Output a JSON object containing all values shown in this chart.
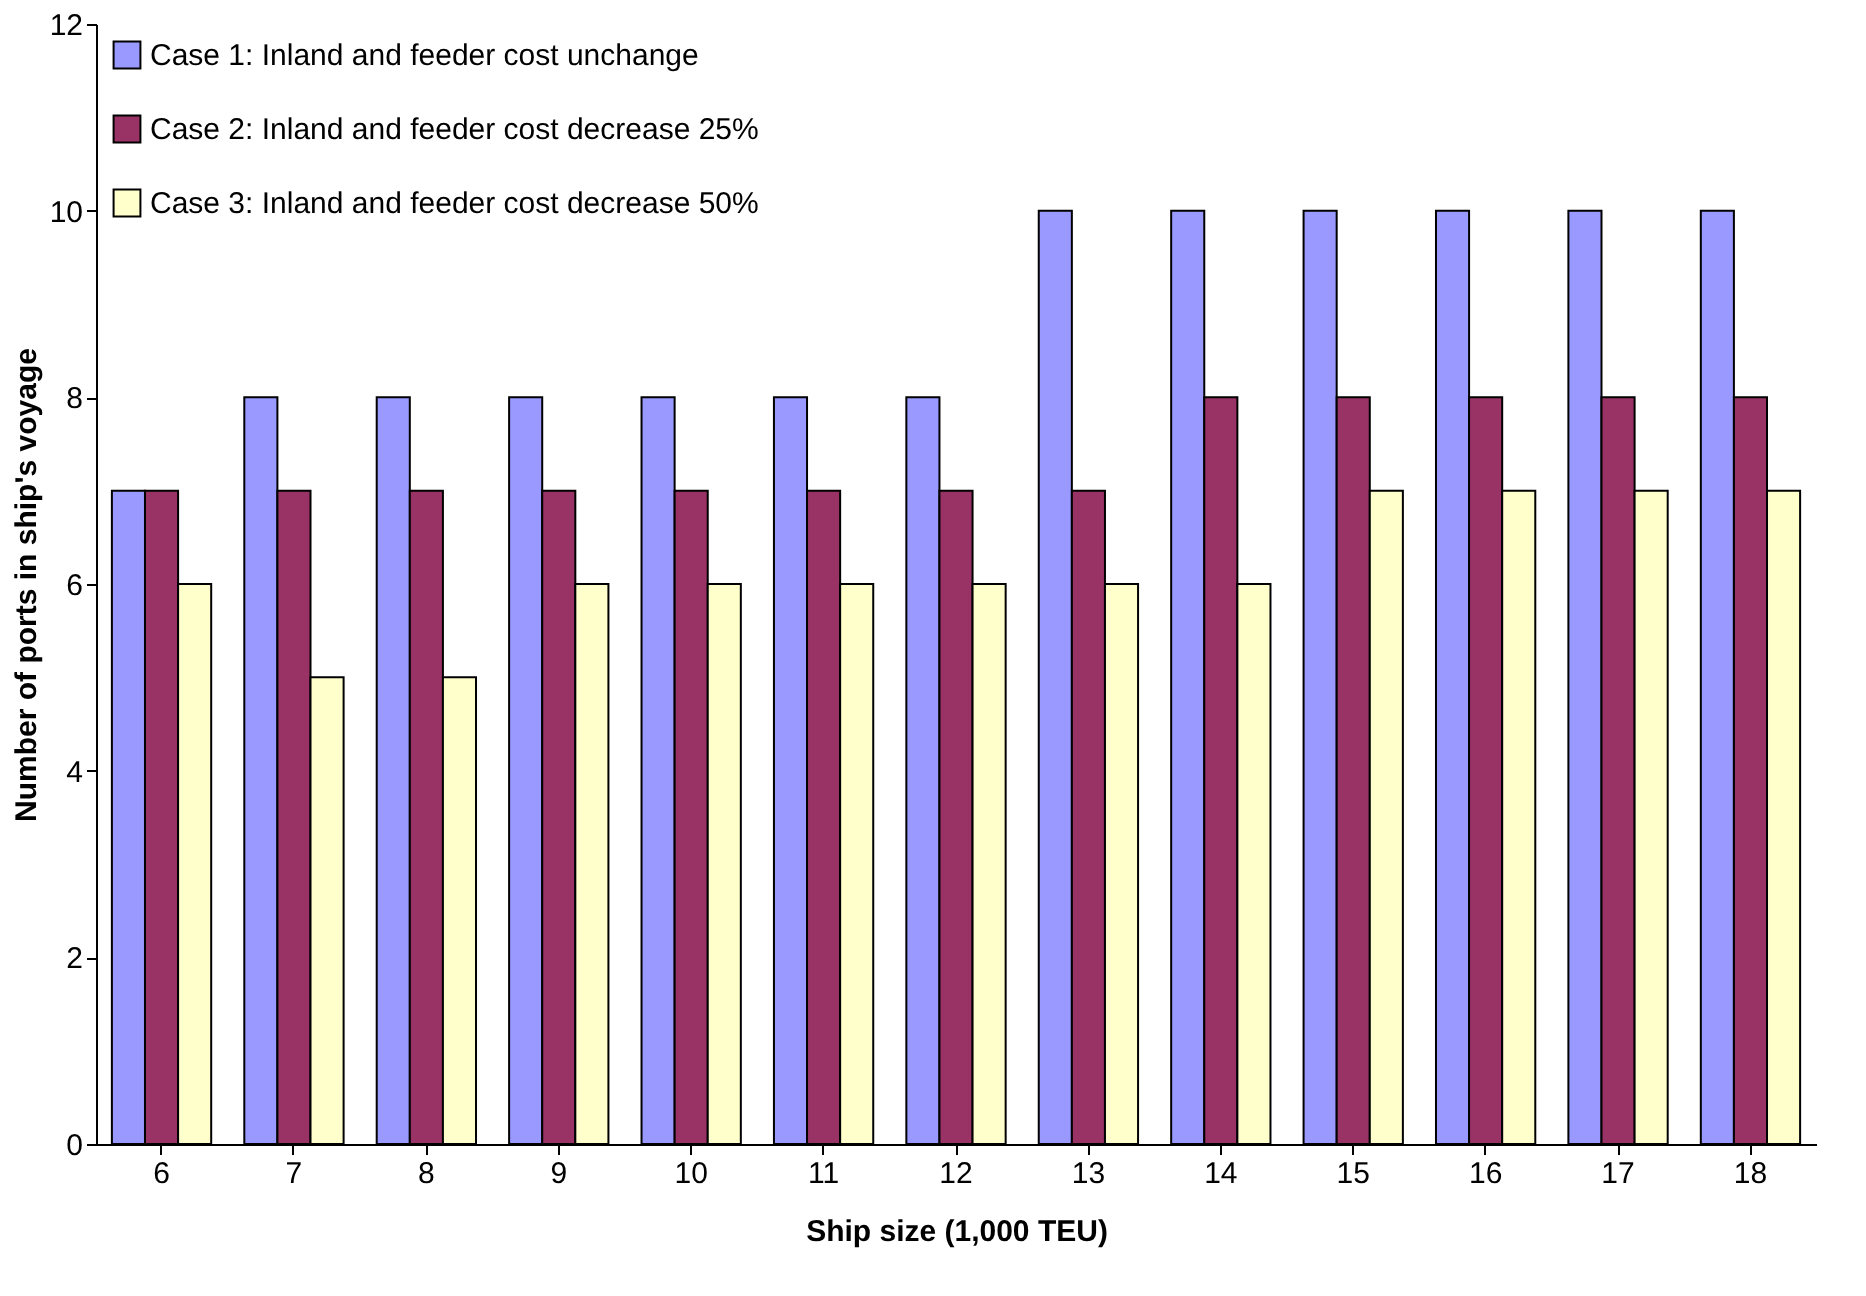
{
  "chart_data": {
    "type": "bar",
    "xlabel": "Ship size (1,000 TEU)",
    "ylabel": "Number of ports in ship's voyage",
    "categories": [
      "6",
      "7",
      "8",
      "9",
      "10",
      "11",
      "12",
      "13",
      "14",
      "15",
      "16",
      "17",
      "18"
    ],
    "series": [
      {
        "name": "Case 1: Inland and feeder cost unchange",
        "color": "#9999ff",
        "values": [
          7,
          8,
          8,
          8,
          8,
          8,
          8,
          10,
          10,
          10,
          10,
          10,
          10
        ]
      },
      {
        "name": "Case 2: Inland and feeder cost decrease 25%",
        "color": "#993366",
        "values": [
          7,
          7,
          7,
          7,
          7,
          7,
          7,
          7,
          8,
          8,
          8,
          8,
          8
        ]
      },
      {
        "name": "Case 3: Inland and feeder cost decrease 50%",
        "color": "#ffffcc",
        "values": [
          6,
          5,
          5,
          6,
          6,
          6,
          6,
          6,
          6,
          7,
          7,
          7,
          7
        ]
      }
    ],
    "ylim": [
      0,
      12
    ],
    "yticks": [
      0,
      2,
      4,
      6,
      8,
      10,
      12
    ],
    "grid": false,
    "legend": "top left"
  }
}
